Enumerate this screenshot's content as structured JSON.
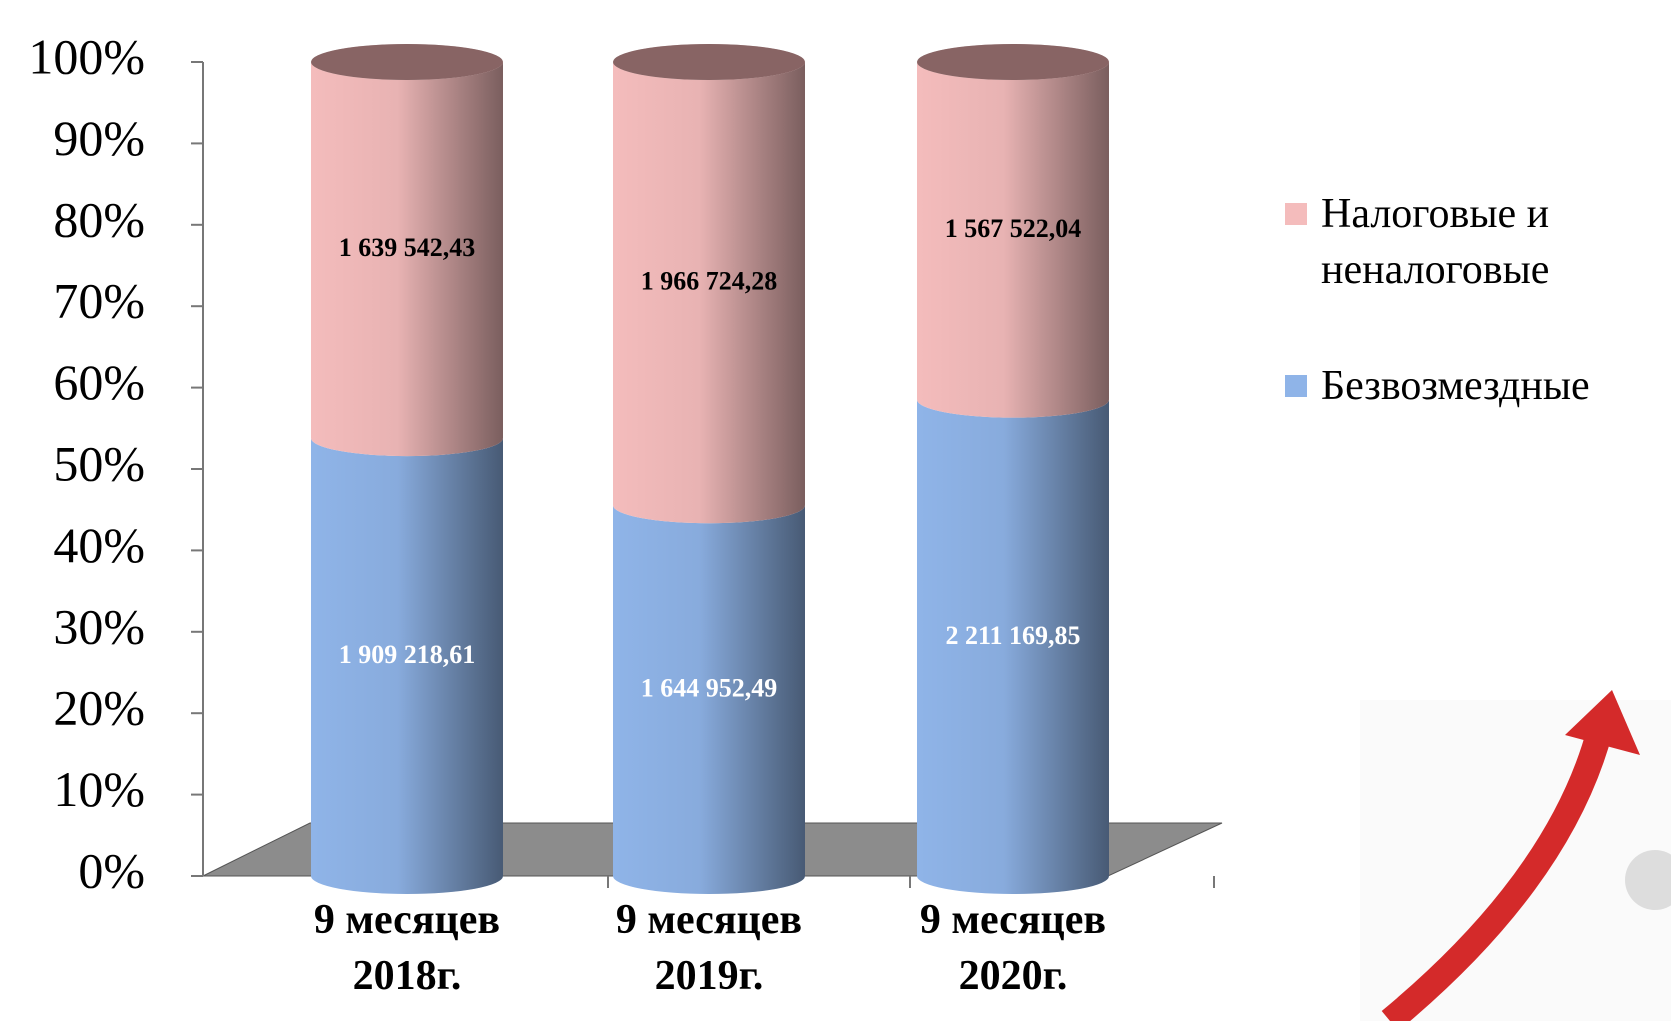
{
  "chart_data": {
    "type": "bar",
    "stacking": "percent",
    "categories": [
      "9 месяцев 2018г.",
      "9 месяцев 2019г.",
      "9 месяцев 2020г."
    ],
    "series": [
      {
        "name": "Безвозмездные",
        "color": "#8fb4e8",
        "values": [
          1909218.61,
          1644952.49,
          2211169.85
        ],
        "value_labels": [
          "1 909 218,61",
          "1 644 952,49",
          "2 211 169,85"
        ]
      },
      {
        "name": "Налоговые и неналоговые",
        "color": "#f4bcbc",
        "values": [
          1639542.43,
          1966724.28,
          1567522.04
        ],
        "value_labels": [
          "1 639 542,43",
          "1 966 724,28",
          "1 567 522,04"
        ]
      }
    ],
    "ylim": [
      0,
      100
    ],
    "yticks": [
      {
        "value": 0,
        "label": "0%"
      },
      {
        "value": 10,
        "label": "10%"
      },
      {
        "value": 20,
        "label": "20%"
      },
      {
        "value": 30,
        "label": "30%"
      },
      {
        "value": 40,
        "label": "40%"
      },
      {
        "value": 50,
        "label": "50%"
      },
      {
        "value": 60,
        "label": "60%"
      },
      {
        "value": 70,
        "label": "70%"
      },
      {
        "value": 80,
        "label": "80%"
      },
      {
        "value": 90,
        "label": "90%"
      },
      {
        "value": 100,
        "label": "100%"
      }
    ],
    "legend": "right"
  }
}
